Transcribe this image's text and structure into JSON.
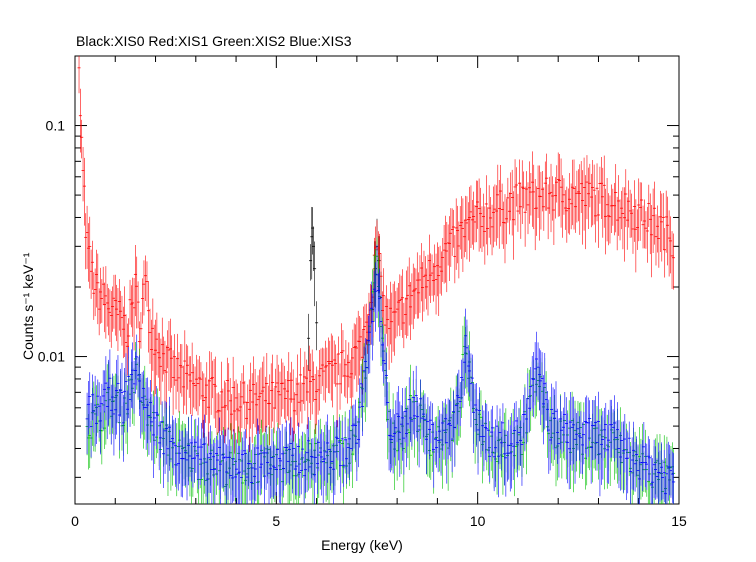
{
  "chart_data": {
    "type": "scatter",
    "title": "Black:XIS0 Red:XIS1 Green:XIS2 Blue:XIS3",
    "xlabel": "Energy (keV)",
    "ylabel": "Counts s⁻¹ keV⁻¹",
    "xlim": [
      0,
      15
    ],
    "ylim": [
      0.0023,
      0.2
    ],
    "yscale": "log",
    "x_ticks": [
      {
        "value": 0,
        "label": "0"
      },
      {
        "value": 5,
        "label": "5"
      },
      {
        "value": 10,
        "label": "10"
      },
      {
        "value": 15,
        "label": "15"
      }
    ],
    "y_ticks": [
      {
        "value": 0.01,
        "label": "0.01"
      },
      {
        "value": 0.1,
        "label": "0.1"
      }
    ],
    "grid": false,
    "legend": "none",
    "series": [
      {
        "color": "#000000",
        "points": [
          [
            5.85,
            0.026
          ],
          [
            5.88,
            0.033
          ],
          [
            5.9,
            0.036
          ],
          [
            5.92,
            0.03
          ],
          [
            5.95,
            0.024
          ],
          [
            5.8,
            0.012
          ],
          [
            6.0,
            0.014
          ],
          [
            7.45,
            0.024
          ],
          [
            7.5,
            0.03
          ],
          [
            7.55,
            0.026
          ],
          [
            7.4,
            0.016
          ],
          [
            7.6,
            0.018
          ]
        ]
      },
      {
        "color": "#ff0000",
        "points": [
          [
            0.1,
            0.16
          ],
          [
            0.2,
            0.06
          ],
          [
            0.3,
            0.03
          ],
          [
            0.5,
            0.02
          ],
          [
            0.7,
            0.018
          ],
          [
            0.9,
            0.016
          ],
          [
            1.1,
            0.015
          ],
          [
            1.3,
            0.013
          ],
          [
            1.5,
            0.02
          ],
          [
            1.6,
            0.014
          ],
          [
            1.75,
            0.021
          ],
          [
            1.9,
            0.013
          ],
          [
            2.1,
            0.011
          ],
          [
            2.4,
            0.009
          ],
          [
            2.8,
            0.008
          ],
          [
            3.2,
            0.0072
          ],
          [
            3.6,
            0.0068
          ],
          [
            4.0,
            0.0066
          ],
          [
            4.4,
            0.0065
          ],
          [
            4.8,
            0.0066
          ],
          [
            5.2,
            0.0068
          ],
          [
            5.6,
            0.0072
          ],
          [
            6.0,
            0.0078
          ],
          [
            6.4,
            0.0085
          ],
          [
            6.8,
            0.0095
          ],
          [
            7.1,
            0.011
          ],
          [
            7.3,
            0.016
          ],
          [
            7.5,
            0.03
          ],
          [
            7.7,
            0.015
          ],
          [
            7.9,
            0.014
          ],
          [
            8.2,
            0.017
          ],
          [
            8.5,
            0.02
          ],
          [
            8.8,
            0.023
          ],
          [
            9.1,
            0.027
          ],
          [
            9.4,
            0.031
          ],
          [
            9.7,
            0.036
          ],
          [
            10.0,
            0.04
          ],
          [
            10.5,
            0.044
          ],
          [
            11.0,
            0.048
          ],
          [
            11.5,
            0.05
          ],
          [
            12.0,
            0.051
          ],
          [
            12.5,
            0.05
          ],
          [
            13.0,
            0.049
          ],
          [
            13.5,
            0.046
          ],
          [
            14.0,
            0.042
          ],
          [
            14.5,
            0.037
          ],
          [
            14.9,
            0.032
          ]
        ]
      },
      {
        "color": "#00c000",
        "points": [
          [
            0.3,
            0.005
          ],
          [
            0.6,
            0.0055
          ],
          [
            0.9,
            0.0065
          ],
          [
            1.2,
            0.006
          ],
          [
            1.5,
            0.0085
          ],
          [
            1.8,
            0.0055
          ],
          [
            2.2,
            0.0045
          ],
          [
            2.6,
            0.0038
          ],
          [
            3.0,
            0.0036
          ],
          [
            3.4,
            0.0034
          ],
          [
            3.8,
            0.0033
          ],
          [
            4.2,
            0.0033
          ],
          [
            4.6,
            0.0034
          ],
          [
            5.0,
            0.0034
          ],
          [
            5.4,
            0.0035
          ],
          [
            5.8,
            0.0036
          ],
          [
            6.2,
            0.0036
          ],
          [
            6.6,
            0.0038
          ],
          [
            7.0,
            0.0045
          ],
          [
            7.5,
            0.024
          ],
          [
            7.8,
            0.005
          ],
          [
            8.1,
            0.0045
          ],
          [
            8.4,
            0.0062
          ],
          [
            8.8,
            0.0045
          ],
          [
            9.2,
            0.0045
          ],
          [
            9.5,
            0.0055
          ],
          [
            9.7,
            0.011
          ],
          [
            9.9,
            0.006
          ],
          [
            10.3,
            0.0042
          ],
          [
            10.7,
            0.0042
          ],
          [
            11.1,
            0.0045
          ],
          [
            11.5,
            0.0085
          ],
          [
            11.8,
            0.005
          ],
          [
            12.2,
            0.0046
          ],
          [
            12.6,
            0.0044
          ],
          [
            13.0,
            0.0044
          ],
          [
            13.4,
            0.0042
          ],
          [
            13.8,
            0.0036
          ],
          [
            14.2,
            0.0033
          ],
          [
            14.6,
            0.003
          ],
          [
            14.9,
            0.0029
          ]
        ]
      },
      {
        "color": "#0000ff",
        "points": [
          [
            0.3,
            0.0058
          ],
          [
            0.6,
            0.006
          ],
          [
            0.9,
            0.007
          ],
          [
            1.2,
            0.0062
          ],
          [
            1.5,
            0.009
          ],
          [
            1.8,
            0.0058
          ],
          [
            2.2,
            0.0046
          ],
          [
            2.6,
            0.004
          ],
          [
            3.0,
            0.0037
          ],
          [
            3.4,
            0.0035
          ],
          [
            3.8,
            0.0034
          ],
          [
            4.2,
            0.0034
          ],
          [
            4.6,
            0.0035
          ],
          [
            5.0,
            0.0035
          ],
          [
            5.4,
            0.0036
          ],
          [
            5.8,
            0.0037
          ],
          [
            6.2,
            0.0037
          ],
          [
            6.6,
            0.0039
          ],
          [
            7.0,
            0.0047
          ],
          [
            7.5,
            0.022
          ],
          [
            7.8,
            0.0052
          ],
          [
            8.1,
            0.0047
          ],
          [
            8.4,
            0.0065
          ],
          [
            8.8,
            0.0047
          ],
          [
            9.2,
            0.0047
          ],
          [
            9.5,
            0.0058
          ],
          [
            9.7,
            0.012
          ],
          [
            9.9,
            0.0062
          ],
          [
            10.3,
            0.0044
          ],
          [
            10.7,
            0.0044
          ],
          [
            11.1,
            0.0047
          ],
          [
            11.5,
            0.009
          ],
          [
            11.8,
            0.0052
          ],
          [
            12.2,
            0.0048
          ],
          [
            12.6,
            0.0046
          ],
          [
            13.0,
            0.0046
          ],
          [
            13.4,
            0.0044
          ],
          [
            13.8,
            0.0038
          ],
          [
            14.2,
            0.0034
          ],
          [
            14.6,
            0.0031
          ],
          [
            14.9,
            0.003
          ]
        ]
      }
    ]
  }
}
